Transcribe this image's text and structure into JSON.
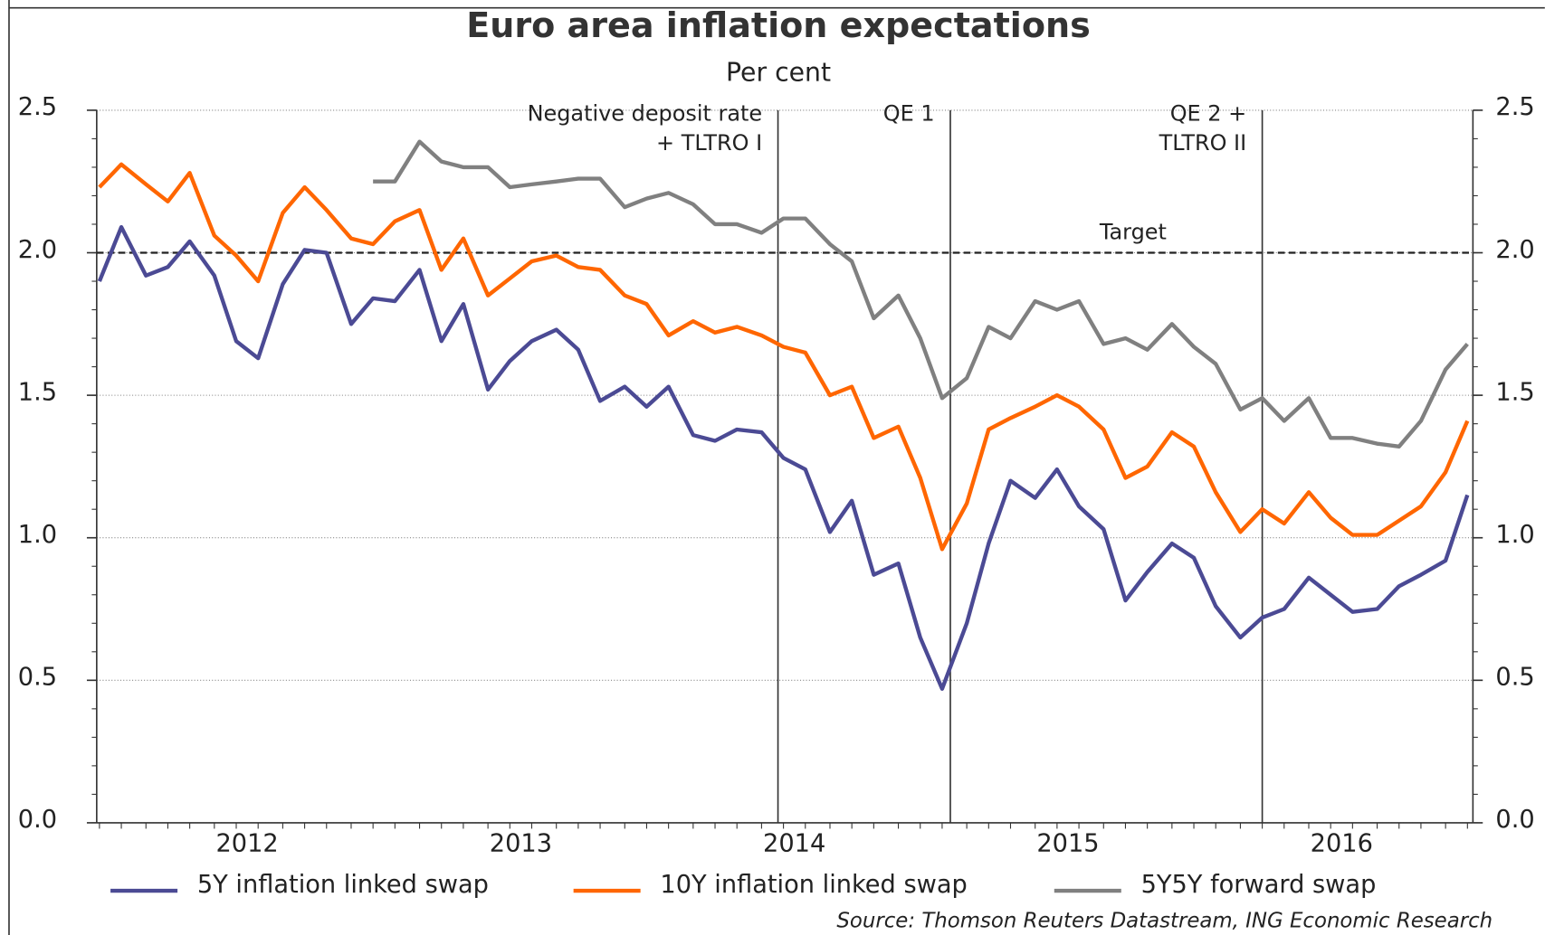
{
  "chart_data": {
    "type": "line",
    "title": "Euro area inflation expectations",
    "subtitle": "Per cent",
    "source": "Source: Thomson Reuters Datastream, ING Economic Research",
    "x": [
      2011.96,
      2012.04,
      2012.13,
      2012.21,
      2012.29,
      2012.38,
      2012.46,
      2012.54,
      2012.63,
      2012.71,
      2012.79,
      2012.88,
      2012.96,
      2013.04,
      2013.13,
      2013.21,
      2013.29,
      2013.38,
      2013.46,
      2013.54,
      2013.63,
      2013.71,
      2013.79,
      2013.88,
      2013.96,
      2014.04,
      2014.13,
      2014.21,
      2014.29,
      2014.38,
      2014.46,
      2014.54,
      2014.63,
      2014.71,
      2014.79,
      2014.88,
      2014.96,
      2015.04,
      2015.13,
      2015.21,
      2015.29,
      2015.38,
      2015.46,
      2015.54,
      2015.63,
      2015.71,
      2015.79,
      2015.88,
      2015.96,
      2016.04,
      2016.13,
      2016.21,
      2016.29,
      2016.38,
      2016.46,
      2016.54,
      2016.63,
      2016.71,
      2016.79,
      2016.88,
      2016.96
    ],
    "xlim": [
      2011.95,
      2016.98
    ],
    "xticks": [
      {
        "value": 2012.5,
        "label": "2012"
      },
      {
        "value": 2013.5,
        "label": "2013"
      },
      {
        "value": 2014.5,
        "label": "2014"
      },
      {
        "value": 2015.5,
        "label": "2015"
      },
      {
        "value": 2016.5,
        "label": "2016"
      }
    ],
    "ylim": [
      0,
      2.5
    ],
    "yticks": [
      {
        "value": 0,
        "label": "0.0"
      },
      0.5,
      {
        "value": 1,
        "label": "1.0"
      },
      1.5,
      {
        "value": 2,
        "label": "2.0"
      },
      2.5
    ],
    "grid": true,
    "series": [
      {
        "name": "5Y inflation linked swap",
        "color": "#4b4a94",
        "values": [
          1.9,
          2.09,
          1.92,
          1.95,
          2.04,
          1.92,
          1.69,
          1.63,
          1.89,
          2.01,
          2.0,
          1.75,
          1.84,
          1.83,
          1.94,
          1.69,
          1.82,
          1.52,
          1.62,
          1.69,
          1.73,
          1.66,
          1.48,
          1.53,
          1.46,
          1.53,
          1.36,
          1.34,
          1.38,
          1.37,
          1.28,
          1.24,
          1.02,
          1.13,
          0.87,
          0.91,
          0.65,
          0.47,
          0.7,
          0.98,
          1.2,
          1.14,
          1.24,
          1.11,
          1.03,
          0.78,
          0.88,
          0.98,
          0.93,
          0.76,
          0.65,
          0.72,
          0.75,
          0.86,
          0.8,
          0.74,
          0.75,
          0.83,
          0.87,
          0.92,
          1.15
        ]
      },
      {
        "name": "10Y inflation linked swap",
        "color": "#ff6600",
        "values": [
          2.23,
          2.31,
          2.24,
          2.18,
          2.28,
          2.06,
          1.99,
          1.9,
          2.14,
          2.23,
          2.15,
          2.05,
          2.03,
          2.11,
          2.15,
          1.94,
          2.05,
          1.85,
          1.91,
          1.97,
          1.99,
          1.95,
          1.94,
          1.85,
          1.82,
          1.71,
          1.76,
          1.72,
          1.74,
          1.71,
          1.67,
          1.65,
          1.5,
          1.53,
          1.35,
          1.39,
          1.21,
          0.96,
          1.12,
          1.38,
          1.42,
          1.46,
          1.5,
          1.46,
          1.38,
          1.21,
          1.25,
          1.37,
          1.32,
          1.16,
          1.02,
          1.1,
          1.05,
          1.16,
          1.07,
          1.01,
          1.01,
          1.06,
          1.11,
          1.23,
          1.41
        ]
      },
      {
        "name": "5Y5Y forward swap",
        "color": "#808080",
        "values": [
          null,
          null,
          null,
          null,
          null,
          null,
          null,
          null,
          null,
          null,
          null,
          null,
          2.25,
          2.25,
          2.39,
          2.32,
          2.3,
          2.3,
          2.23,
          2.24,
          2.25,
          2.26,
          2.26,
          2.16,
          2.19,
          2.21,
          2.17,
          2.1,
          2.1,
          2.07,
          2.12,
          2.12,
          2.03,
          1.97,
          1.77,
          1.85,
          1.7,
          1.49,
          1.56,
          1.74,
          1.7,
          1.83,
          1.8,
          1.83,
          1.68,
          1.7,
          1.66,
          1.75,
          1.67,
          1.61,
          1.45,
          1.49,
          1.41,
          1.49,
          1.35,
          1.35,
          1.33,
          1.32,
          1.41,
          1.59,
          1.68
        ]
      }
    ],
    "target": {
      "value": 2.0,
      "label": "Target"
    },
    "events": [
      {
        "x": 2014.44,
        "label": [
          "Negative deposit rate",
          "+ TLTRO I"
        ]
      },
      {
        "x": 2015.07,
        "label": [
          "QE 1"
        ]
      },
      {
        "x": 2016.21,
        "label": [
          "QE 2 +",
          "TLTRO II"
        ]
      }
    ]
  }
}
